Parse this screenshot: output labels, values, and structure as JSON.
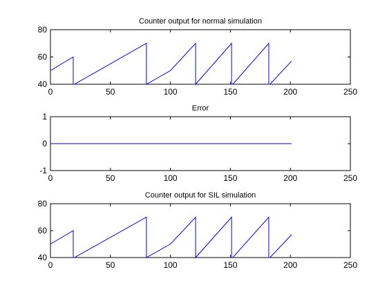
{
  "figure": {
    "background": "#ffffff",
    "axes_color": "#000000",
    "line_color": "#0000ff"
  },
  "chart_data": [
    {
      "type": "line",
      "title": "Counter output for normal simulation",
      "xlabel": "",
      "ylabel": "",
      "xlim": [
        0,
        250
      ],
      "ylim": [
        40,
        80
      ],
      "xticks": [
        0,
        50,
        100,
        150,
        200,
        250
      ],
      "yticks": [
        40,
        60,
        80
      ],
      "grid": false,
      "series": [
        {
          "color": "#0000ff",
          "x": [
            0,
            19,
            19,
            20,
            80,
            80,
            100,
            121,
            121,
            151,
            151,
            152,
            182,
            182,
            183,
            201
          ],
          "y": [
            50,
            60,
            40,
            40,
            70,
            40,
            50,
            70,
            40,
            70,
            40,
            40,
            70,
            40,
            40,
            57
          ]
        }
      ]
    },
    {
      "type": "line",
      "title": "Error",
      "xlabel": "",
      "ylabel": "",
      "xlim": [
        0,
        250
      ],
      "ylim": [
        -1,
        1
      ],
      "xticks": [
        0,
        50,
        100,
        150,
        200,
        250
      ],
      "yticks": [
        -1,
        0,
        1
      ],
      "grid": false,
      "series": [
        {
          "color": "#0000ff",
          "x": [
            0,
            201
          ],
          "y": [
            0,
            0
          ]
        }
      ]
    },
    {
      "type": "line",
      "title": "Counter output for SIL simulation",
      "xlabel": "",
      "ylabel": "",
      "xlim": [
        0,
        250
      ],
      "ylim": [
        40,
        80
      ],
      "xticks": [
        0,
        50,
        100,
        150,
        200,
        250
      ],
      "yticks": [
        40,
        60,
        80
      ],
      "grid": false,
      "series": [
        {
          "color": "#0000ff",
          "x": [
            0,
            19,
            19,
            20,
            80,
            80,
            100,
            121,
            121,
            151,
            151,
            152,
            182,
            182,
            183,
            201
          ],
          "y": [
            50,
            60,
            40,
            40,
            70,
            40,
            50,
            70,
            40,
            70,
            40,
            40,
            70,
            40,
            40,
            57
          ]
        }
      ]
    }
  ]
}
